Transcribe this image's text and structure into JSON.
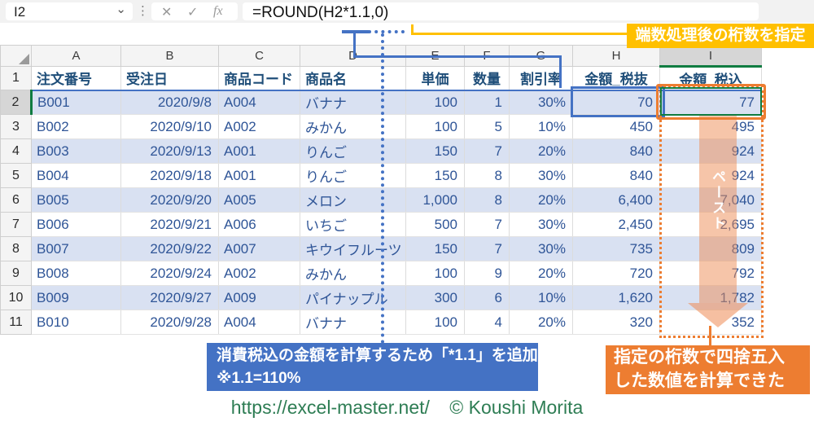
{
  "formula_bar": {
    "name_box": "I2",
    "chevron": "⌄",
    "dots": "⋮",
    "cancel": "✕",
    "enter": "✓",
    "fx": "fx",
    "formula": "=ROUND(H2*1.1,0)"
  },
  "columns": [
    "A",
    "B",
    "C",
    "D",
    "E",
    "F",
    "G",
    "H",
    "I"
  ],
  "row_numbers": [
    "1",
    "2",
    "3",
    "4",
    "5",
    "6",
    "7",
    "8",
    "9",
    "10",
    "11"
  ],
  "table": {
    "headers": [
      "注文番号",
      "受注日",
      "商品コード",
      "商品名",
      "単価",
      "数量",
      "割引率",
      "金額_税抜",
      "金額_税込"
    ],
    "data": [
      [
        "B001",
        "2020/9/8",
        "A004",
        "バナナ",
        "100",
        "1",
        "30%",
        "70",
        "77"
      ],
      [
        "B002",
        "2020/9/10",
        "A002",
        "みかん",
        "100",
        "5",
        "10%",
        "450",
        "495"
      ],
      [
        "B003",
        "2020/9/13",
        "A001",
        "りんご",
        "150",
        "7",
        "20%",
        "840",
        "924"
      ],
      [
        "B004",
        "2020/9/18",
        "A001",
        "りんご",
        "150",
        "8",
        "30%",
        "840",
        "924"
      ],
      [
        "B005",
        "2020/9/20",
        "A005",
        "メロン",
        "1,000",
        "8",
        "20%",
        "6,400",
        "7,040"
      ],
      [
        "B006",
        "2020/9/21",
        "A006",
        "いちご",
        "500",
        "7",
        "30%",
        "2,450",
        "2,695"
      ],
      [
        "B007",
        "2020/9/22",
        "A007",
        "キウイフルーツ",
        "150",
        "7",
        "30%",
        "735",
        "809"
      ],
      [
        "B008",
        "2020/9/24",
        "A002",
        "みかん",
        "100",
        "9",
        "20%",
        "720",
        "792"
      ],
      [
        "B009",
        "2020/9/27",
        "A009",
        "パイナップル",
        "300",
        "6",
        "10%",
        "1,620",
        "1,782"
      ],
      [
        "B010",
        "2020/9/28",
        "A004",
        "バナナ",
        "100",
        "4",
        "20%",
        "320",
        "352"
      ]
    ]
  },
  "annotations": {
    "yellow_box": "端数処理後の桁数を指定",
    "blue_box_line1": "消費税込の金額を計算するため「*1.1」を追加",
    "blue_box_line2": "※1.1=110%",
    "orange_box_line1": "指定の桁数で四捨五入",
    "orange_box_line2": "した数値を計算できた",
    "paste_arrow_label": "ペースト"
  },
  "footer": {
    "url": "https://excel-master.net/",
    "copyright": "© Koushi Morita"
  },
  "colors": {
    "accent_blue": "#4472C4",
    "accent_yellow": "#FFC000",
    "accent_orange": "#ED7D31",
    "selection_green": "#107C41",
    "band_fill": "#D9E1F2",
    "cell_text": "#2F5597",
    "header_text": "#1F4E79",
    "footer_green": "#2E7D54"
  }
}
